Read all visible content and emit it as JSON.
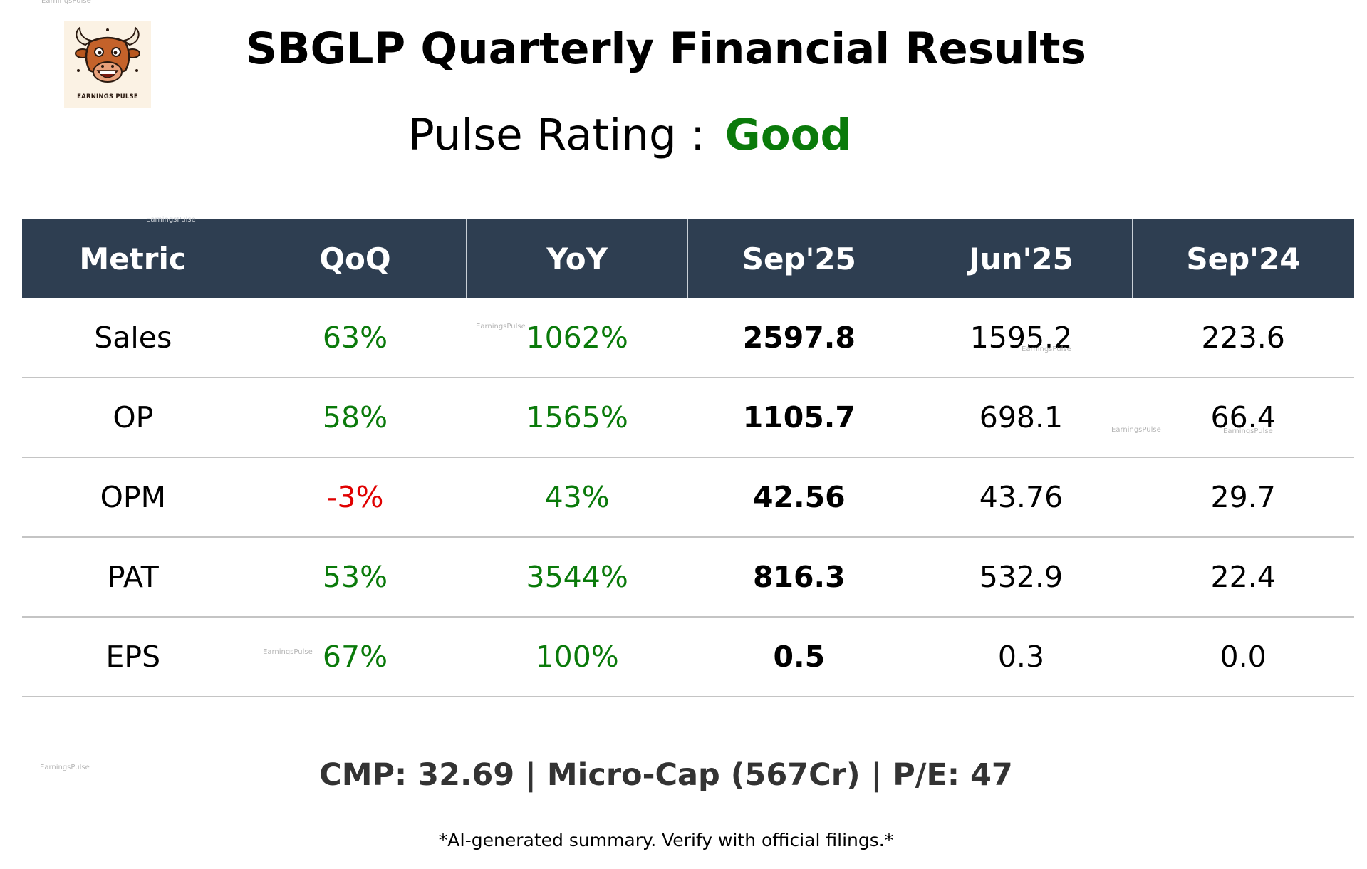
{
  "watermark": "EarningsPulse",
  "logo": {
    "icon": "bull-mascot-icon",
    "text": "EARNINGS PULSE"
  },
  "title": "SBGLP Quarterly Financial Results",
  "rating": {
    "label": "Pulse Rating :",
    "value": "Good",
    "value_color": "#0a7a0a"
  },
  "colors": {
    "header_bg": "#2e3e51",
    "positive": "#0a7a0a",
    "negative": "#e00000"
  },
  "table": {
    "headers": [
      "Metric",
      "QoQ",
      "YoY",
      "Sep'25",
      "Jun'25",
      "Sep'24"
    ],
    "rows": [
      {
        "metric": "Sales",
        "qoq": "63%",
        "yoy": "1062%",
        "sep25": "2597.8",
        "jun25": "1595.2",
        "sep24": "223.6"
      },
      {
        "metric": "OP",
        "qoq": "58%",
        "yoy": "1565%",
        "sep25": "1105.7",
        "jun25": "698.1",
        "sep24": "66.4"
      },
      {
        "metric": "OPM",
        "qoq": "-3%",
        "yoy": "43%",
        "sep25": "42.56",
        "jun25": "43.76",
        "sep24": "29.7"
      },
      {
        "metric": "PAT",
        "qoq": "53%",
        "yoy": "3544%",
        "sep25": "816.3",
        "jun25": "532.9",
        "sep24": "22.4"
      },
      {
        "metric": "EPS",
        "qoq": "67%",
        "yoy": "100%",
        "sep25": "0.5",
        "jun25": "0.3",
        "sep24": "0.0"
      }
    ]
  },
  "footer": "CMP: 32.69 | Micro-Cap (567Cr) | P/E: 47",
  "disclaimer": "*AI-generated summary. Verify with official filings.*"
}
